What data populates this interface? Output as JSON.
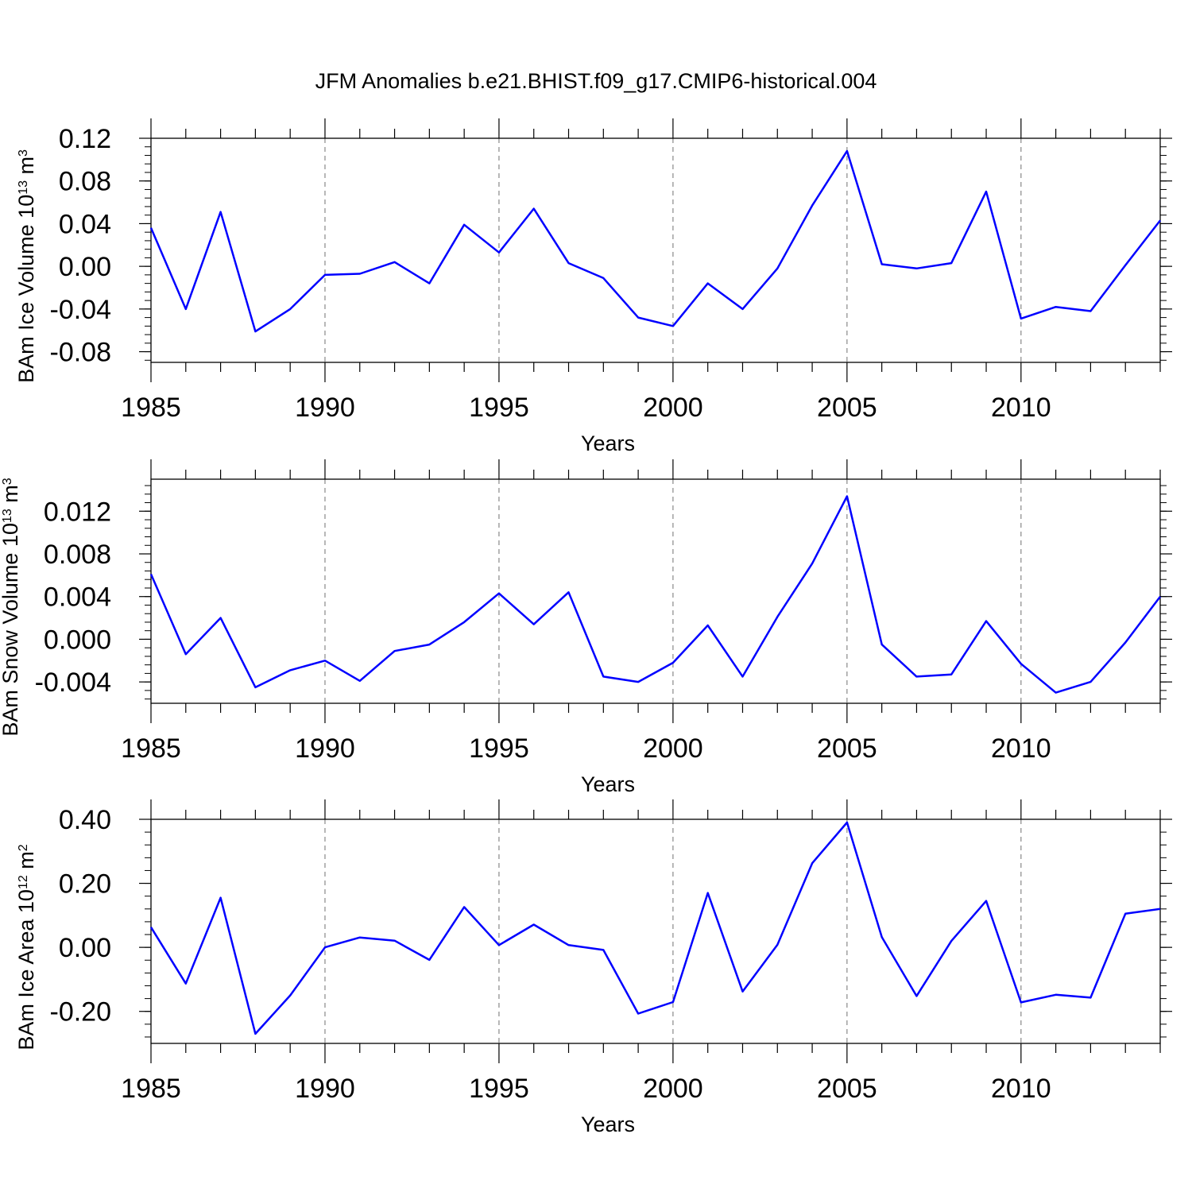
{
  "colors": {
    "line": "#0000ff",
    "axis": "#000000",
    "grid": "#888888"
  },
  "chart_data": [
    {
      "type": "line",
      "title": "JFM Anomalies b.e21.BHIST.f09_g17.CMIP6-historical.004",
      "xlabel": "Years",
      "ylabel": "BAm Ice Volume 10",
      "ylabel_exp": "13",
      "ylabel_unit": " m",
      "ylabel_unit_exp": "3",
      "xlim": [
        1985,
        2014
      ],
      "ylim": [
        -0.09,
        0.12
      ],
      "x_ticks": [
        "1985",
        "1990",
        "1995",
        "2000",
        "2005",
        "2010"
      ],
      "y_ticks": [
        "-0.08",
        "-0.04",
        "0.00",
        "0.04",
        "0.08",
        "0.12"
      ],
      "x": [
        1985,
        1986,
        1987,
        1988,
        1989,
        1990,
        1991,
        1992,
        1993,
        1994,
        1995,
        1996,
        1997,
        1998,
        1999,
        2000,
        2001,
        2002,
        2003,
        2004,
        2005,
        2006,
        2007,
        2008,
        2009,
        2010,
        2011,
        2012,
        2013,
        2014
      ],
      "values": [
        0.036,
        -0.04,
        0.051,
        -0.061,
        -0.04,
        -0.008,
        -0.007,
        0.004,
        -0.016,
        0.039,
        0.013,
        0.054,
        0.003,
        -0.011,
        -0.048,
        -0.056,
        -0.016,
        -0.04,
        -0.002,
        0.057,
        0.108,
        0.002,
        -0.002,
        0.003,
        0.07,
        -0.049,
        -0.038,
        -0.042,
        0.001,
        0.043
      ]
    },
    {
      "type": "line",
      "title": "",
      "xlabel": "Years",
      "ylabel": "BAm Snow Volume 10",
      "ylabel_exp": "13",
      "ylabel_unit": " m",
      "ylabel_unit_exp": "3",
      "xlim": [
        1985,
        2014
      ],
      "ylim": [
        -0.006,
        0.015
      ],
      "x_ticks": [
        "1985",
        "1990",
        "1995",
        "2000",
        "2005",
        "2010"
      ],
      "y_ticks": [
        "-0.004",
        "0.000",
        "0.004",
        "0.008",
        "0.012"
      ],
      "x": [
        1985,
        1986,
        1987,
        1988,
        1989,
        1990,
        1991,
        1992,
        1993,
        1994,
        1995,
        1996,
        1997,
        1998,
        1999,
        2000,
        2001,
        2002,
        2003,
        2004,
        2005,
        2006,
        2007,
        2008,
        2009,
        2010,
        2011,
        2012,
        2013,
        2014
      ],
      "values": [
        0.0061,
        -0.0014,
        0.002,
        -0.0045,
        -0.0029,
        -0.002,
        -0.0039,
        -0.0011,
        -0.0005,
        0.0016,
        0.0043,
        0.0014,
        0.0044,
        -0.0035,
        -0.004,
        -0.0022,
        0.0013,
        -0.0035,
        0.0021,
        0.0071,
        0.0134,
        -0.0005,
        -0.0035,
        -0.0033,
        0.0017,
        -0.0023,
        -0.005,
        -0.004,
        -0.0003,
        0.004
      ]
    },
    {
      "type": "line",
      "title": "",
      "xlabel": "Years",
      "ylabel": "BAm Ice Area 10",
      "ylabel_exp": "12",
      "ylabel_unit": " m",
      "ylabel_unit_exp": "2",
      "xlim": [
        1985,
        2014
      ],
      "ylim": [
        -0.3,
        0.4
      ],
      "x_ticks": [
        "1985",
        "1990",
        "1995",
        "2000",
        "2005",
        "2010"
      ],
      "y_ticks": [
        "-0.20",
        "0.00",
        "0.20",
        "0.40"
      ],
      "x": [
        1985,
        1986,
        1987,
        1988,
        1989,
        1990,
        1991,
        1992,
        1993,
        1994,
        1995,
        1996,
        1997,
        1998,
        1999,
        2000,
        2001,
        2002,
        2003,
        2004,
        2005,
        2006,
        2007,
        2008,
        2009,
        2010,
        2011,
        2012,
        2013,
        2014
      ],
      "values": [
        0.063,
        -0.113,
        0.155,
        -0.27,
        -0.15,
        0.0,
        0.031,
        0.021,
        -0.039,
        0.126,
        0.007,
        0.071,
        0.007,
        -0.008,
        -0.207,
        -0.171,
        0.17,
        -0.138,
        0.008,
        0.263,
        0.39,
        0.032,
        -0.152,
        0.02,
        0.145,
        -0.172,
        -0.148,
        -0.157,
        0.105,
        0.12
      ]
    }
  ]
}
